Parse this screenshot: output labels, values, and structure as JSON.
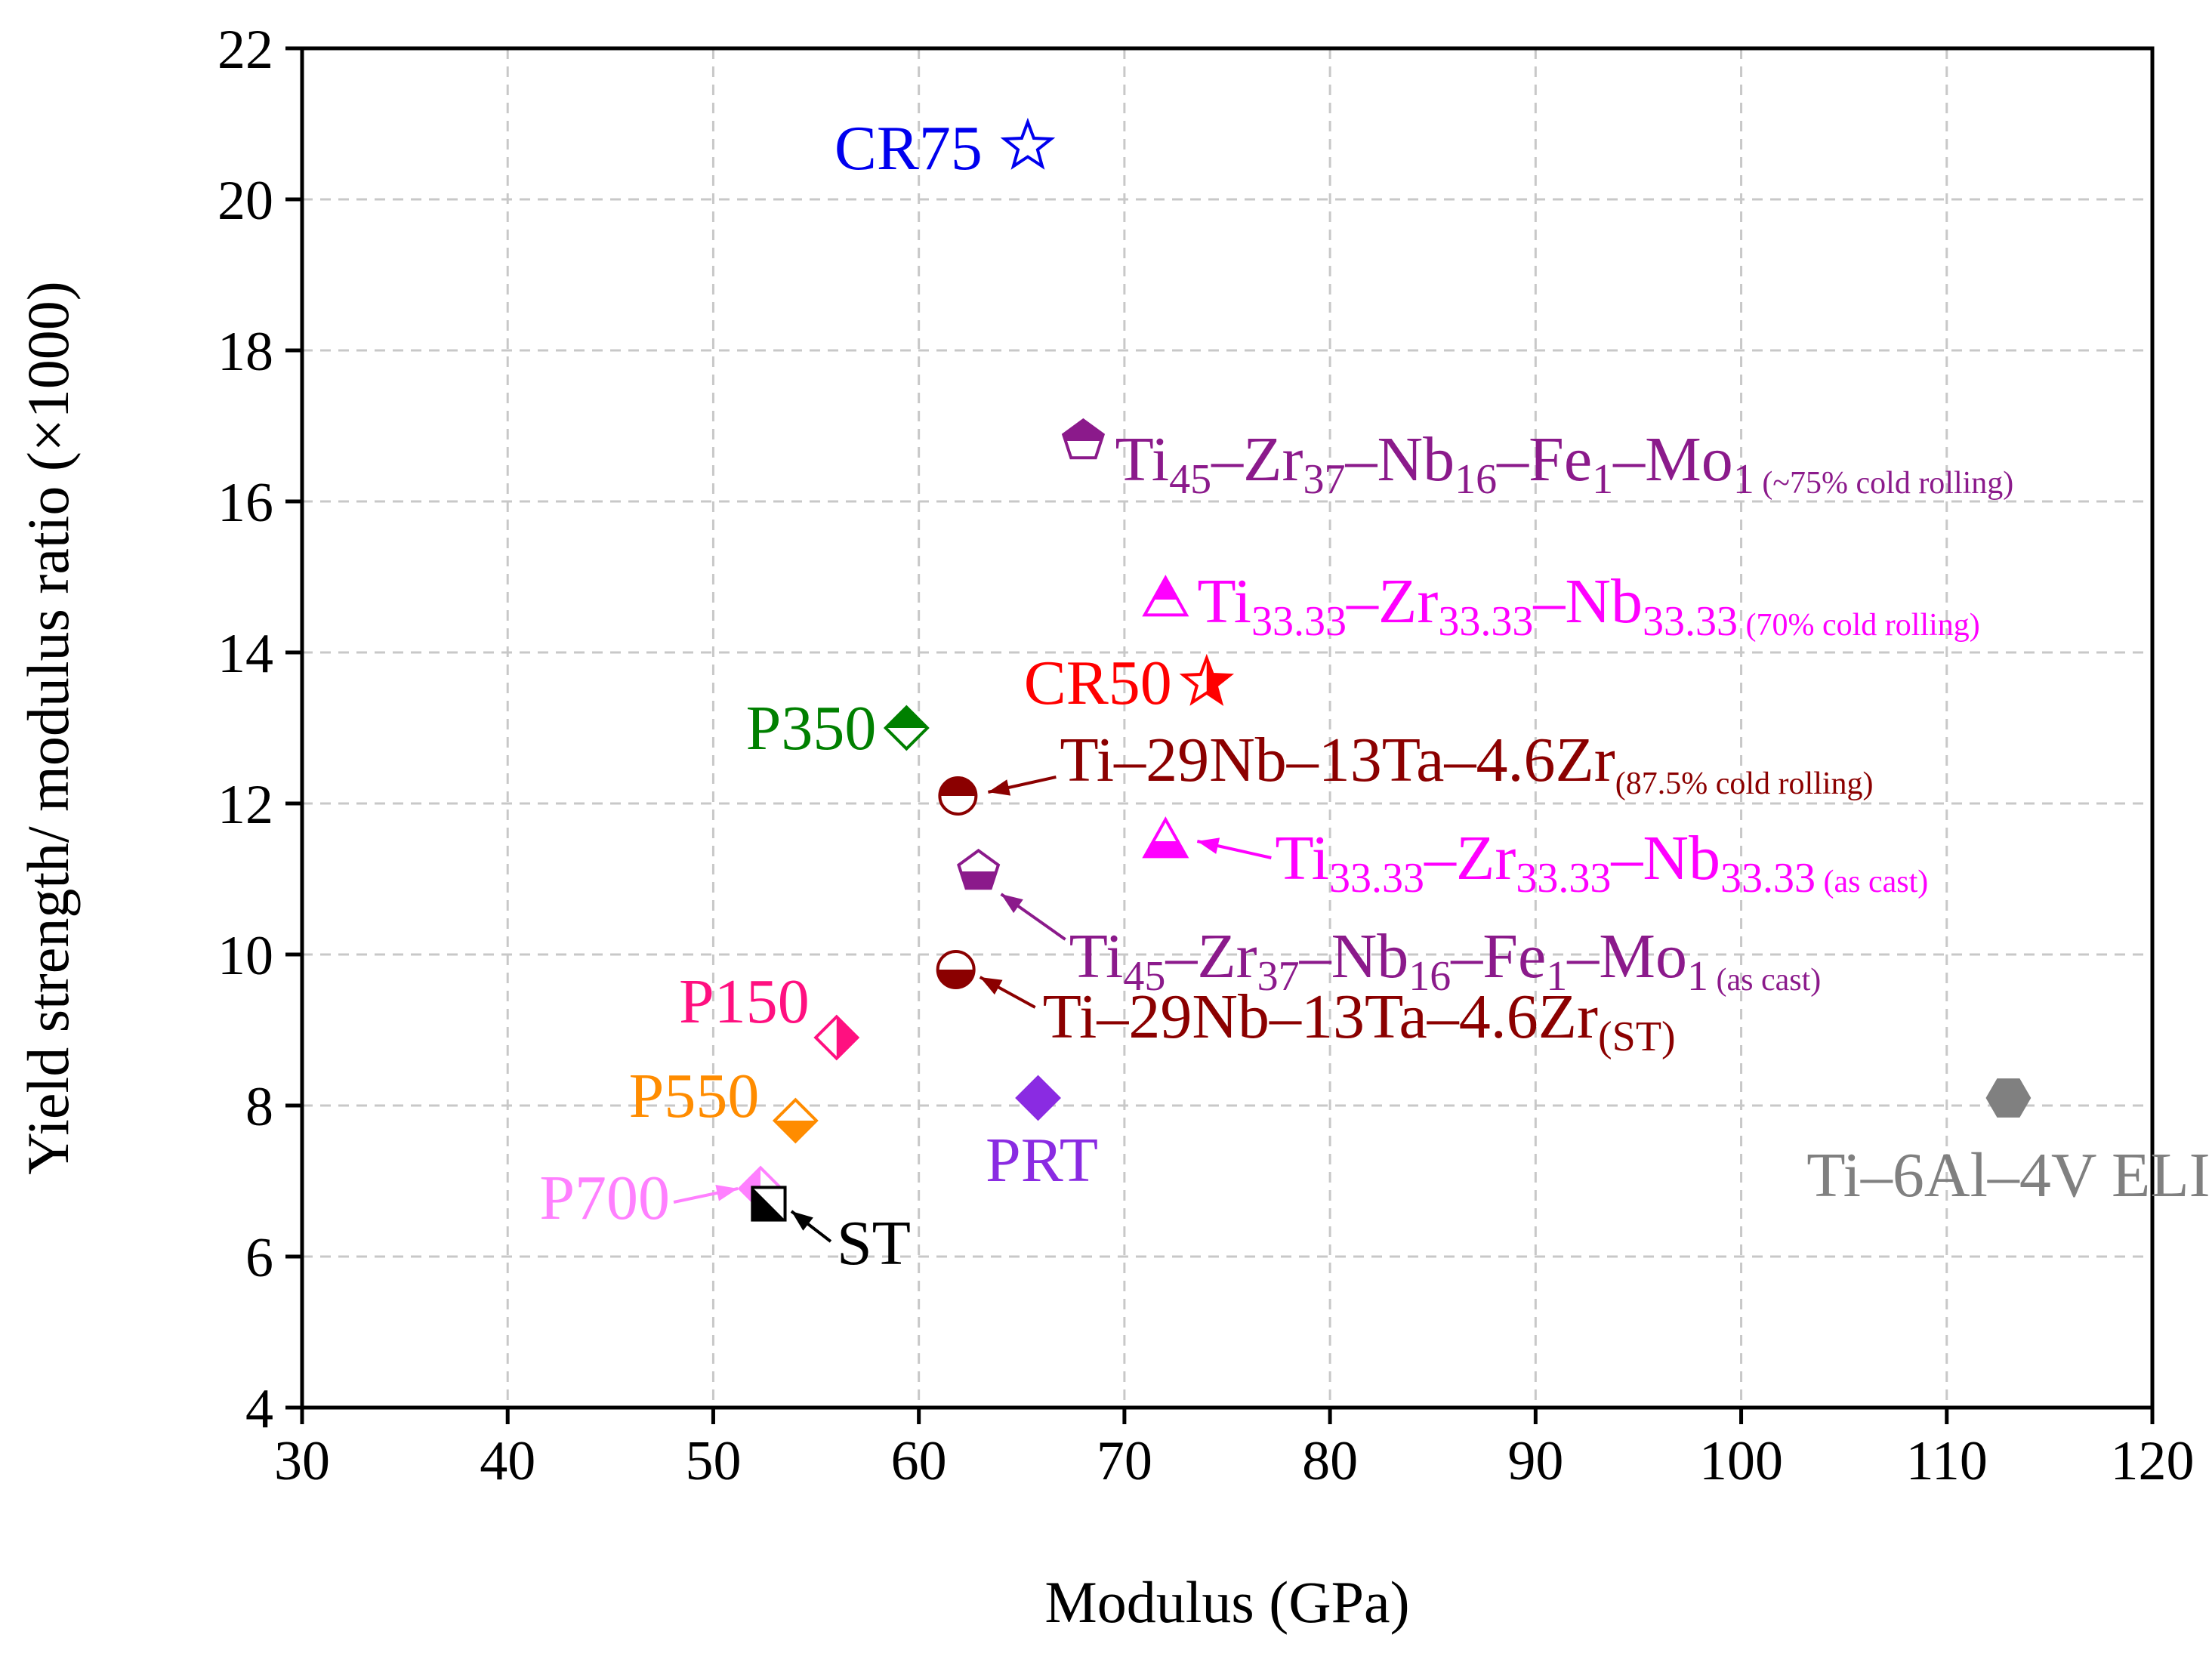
{
  "chart_data": {
    "type": "scatter",
    "title": "",
    "xlabel": "Modulus (GPa)",
    "ylabel": "Yield strength/ modulus ratio (×1000)",
    "xlim": [
      30,
      120
    ],
    "ylim": [
      4,
      22
    ],
    "xticks": [
      "30",
      "40",
      "50",
      "60",
      "70",
      "80",
      "90",
      "100",
      "110",
      "120"
    ],
    "yticks": [
      "4",
      "6",
      "8",
      "10",
      "12",
      "14",
      "16",
      "18",
      "20",
      "22"
    ],
    "grid": true,
    "points": [
      {
        "id": "cr75",
        "x": 65.3,
        "y": 20.7,
        "marker": "star",
        "fill": "open",
        "color": "#0000ee",
        "label": [
          {
            "t": "CR75"
          }
        ]
      },
      {
        "id": "tizr-cold",
        "x": 68,
        "y": 16.8,
        "marker": "pentagon",
        "fill": "top",
        "color": "#8b1a8b",
        "label": [
          {
            "t": "Ti"
          },
          {
            "t": "45",
            "s": "sub"
          },
          {
            "t": "–Zr"
          },
          {
            "t": "37",
            "s": "sub"
          },
          {
            "t": "–Nb"
          },
          {
            "t": "16",
            "s": "sub"
          },
          {
            "t": "–Fe"
          },
          {
            "t": "1",
            "s": "sub"
          },
          {
            "t": "–Mo"
          },
          {
            "t": "1",
            "s": "sub"
          },
          {
            "t": " (~75% cold rolling)",
            "s": "note"
          }
        ]
      },
      {
        "id": "tizrnb-cold",
        "x": 72,
        "y": 14.7,
        "marker": "triangle",
        "fill": "top",
        "color": "#ff00ff",
        "label": [
          {
            "t": "Ti"
          },
          {
            "t": "33.33",
            "s": "sub"
          },
          {
            "t": "–Zr"
          },
          {
            "t": "33.33",
            "s": "sub"
          },
          {
            "t": "–Nb"
          },
          {
            "t": "33.33",
            "s": "sub"
          },
          {
            "t": " (70% cold rolling)",
            "s": "note"
          }
        ]
      },
      {
        "id": "cr50",
        "x": 74,
        "y": 13.6,
        "marker": "star",
        "fill": "right",
        "color": "#ff0000",
        "label": [
          {
            "t": "CR50"
          }
        ]
      },
      {
        "id": "p350",
        "x": 59.4,
        "y": 13.0,
        "marker": "diamond",
        "fill": "top",
        "color": "#008000",
        "label": [
          {
            "t": "P350"
          }
        ]
      },
      {
        "id": "tnbtz-cold",
        "x": 61.9,
        "y": 12.1,
        "marker": "circle",
        "fill": "top",
        "color": "#8b0000",
        "label": [
          {
            "t": "Ti–29Nb–13Ta–4.6Zr"
          },
          {
            "t": "(87.5% cold rolling)",
            "s": "note"
          }
        ]
      },
      {
        "id": "tizrnb-cast",
        "x": 72,
        "y": 11.5,
        "marker": "triangle",
        "fill": "bottom",
        "color": "#ff00ff",
        "label": [
          {
            "t": "Ti"
          },
          {
            "t": "33.33",
            "s": "sub"
          },
          {
            "t": "–Zr"
          },
          {
            "t": "33.33",
            "s": "sub"
          },
          {
            "t": "–Nb"
          },
          {
            "t": "33.33",
            "s": "sub"
          },
          {
            "t": " (as cast)",
            "s": "note"
          }
        ]
      },
      {
        "id": "tizr-cast",
        "x": 62.9,
        "y": 11.1,
        "marker": "pentagon",
        "fill": "bottom",
        "color": "#8b1a8b",
        "label": [
          {
            "t": "Ti"
          },
          {
            "t": "45",
            "s": "sub"
          },
          {
            "t": "–Zr"
          },
          {
            "t": "37",
            "s": "sub"
          },
          {
            "t": "–Nb"
          },
          {
            "t": "16",
            "s": "sub"
          },
          {
            "t": "–Fe"
          },
          {
            "t": "1",
            "s": "sub"
          },
          {
            "t": "–Mo"
          },
          {
            "t": "1",
            "s": "sub"
          },
          {
            "t": " (as cast)",
            "s": "note"
          }
        ]
      },
      {
        "id": "tnbtz-st",
        "x": 61.8,
        "y": 9.8,
        "marker": "circle",
        "fill": "bottom",
        "color": "#8b0000",
        "label": [
          {
            "t": "Ti–29Nb–13Ta–4.6Zr"
          },
          {
            "t": "(ST)",
            "s": "sub"
          }
        ]
      },
      {
        "id": "p150",
        "x": 56,
        "y": 8.9,
        "marker": "diamond",
        "fill": "right",
        "color": "#ff1080",
        "label": [
          {
            "t": "P150"
          }
        ]
      },
      {
        "id": "prt",
        "x": 65.8,
        "y": 8.1,
        "marker": "diamond",
        "fill": "full",
        "color": "#8a2be2",
        "label": [
          {
            "t": "PRT"
          }
        ]
      },
      {
        "id": "ti64",
        "x": 113,
        "y": 8.1,
        "marker": "hexagon",
        "fill": "full",
        "color": "#808080",
        "label": [
          {
            "t": "Ti–6Al–4V ELI"
          }
        ]
      },
      {
        "id": "p550",
        "x": 54,
        "y": 7.8,
        "marker": "diamond",
        "fill": "bottom",
        "color": "#ff8c00",
        "label": [
          {
            "t": "P550"
          }
        ]
      },
      {
        "id": "p700",
        "x": 52.3,
        "y": 6.9,
        "marker": "diamond",
        "fill": "left",
        "color": "#ff80ff",
        "label": [
          {
            "t": "P700"
          }
        ]
      },
      {
        "id": "st",
        "x": 52.7,
        "y": 6.7,
        "marker": "square",
        "fill": "bottom-left",
        "color": "#000000",
        "label": [
          {
            "t": "ST"
          }
        ]
      }
    ]
  }
}
